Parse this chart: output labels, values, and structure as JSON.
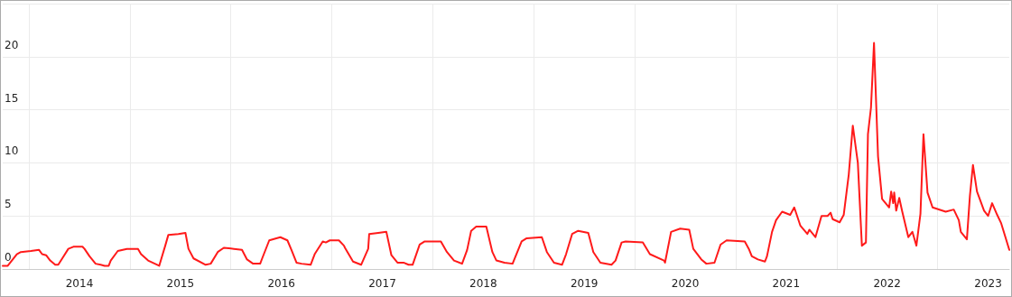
{
  "chart_data": {
    "type": "line",
    "xlim": [
      2013.24,
      2023.21
    ],
    "ylim": [
      0,
      25
    ],
    "yticks": [
      0,
      5,
      10,
      15,
      20
    ],
    "xticks": [
      {
        "value": 2013.5,
        "label": null
      },
      2014,
      {
        "value": 2014.5,
        "label": null
      },
      2015,
      {
        "value": 2015.5,
        "label": null
      },
      2016,
      {
        "value": 2016.5,
        "label": null
      },
      2017,
      {
        "value": 2017.5,
        "label": null
      },
      2018,
      {
        "value": 2018.5,
        "label": null
      },
      2019,
      {
        "value": 2019.5,
        "label": null
      },
      2020,
      {
        "value": 2020.5,
        "label": null
      },
      2021,
      {
        "value": 2021.5,
        "label": null
      },
      2022,
      {
        "value": 2022.5,
        "label": null
      },
      2023
    ],
    "grid": true,
    "marker": "none",
    "line_style": "solid",
    "series": [
      {
        "color": "#ff1a1a",
        "x": [
          2013.24,
          2013.29,
          2013.38,
          2013.42,
          2013.52,
          2013.6,
          2013.63,
          2013.67,
          2013.71,
          2013.76,
          2013.79,
          2013.83,
          2013.89,
          2013.94,
          2014.03,
          2014.05,
          2014.1,
          2014.16,
          2014.21,
          2014.25,
          2014.29,
          2014.31,
          2014.38,
          2014.47,
          2014.58,
          2014.61,
          2014.68,
          2014.79,
          2014.85,
          2014.88,
          2014.98,
          2015.05,
          2015.08,
          2015.13,
          2015.25,
          2015.3,
          2015.37,
          2015.43,
          2015.53,
          2015.61,
          2015.66,
          2015.72,
          2015.79,
          2015.81,
          2015.88,
          2015.99,
          2016.06,
          2016.1,
          2016.15,
          2016.2,
          2016.29,
          2016.33,
          2016.41,
          2016.44,
          2016.48,
          2016.57,
          2016.62,
          2016.63,
          2016.71,
          2016.79,
          2016.86,
          2016.87,
          2016.96,
          2017.04,
          2017.09,
          2017.15,
          2017.21,
          2017.26,
          2017.3,
          2017.37,
          2017.42,
          2017.58,
          2017.64,
          2017.71,
          2017.79,
          2017.84,
          2017.88,
          2017.93,
          2018.03,
          2018.09,
          2018.13,
          2018.21,
          2018.29,
          2018.38,
          2018.43,
          2018.58,
          2018.63,
          2018.7,
          2018.78,
          2018.82,
          2018.88,
          2018.94,
          2019.04,
          2019.09,
          2019.16,
          2019.27,
          2019.31,
          2019.37,
          2019.41,
          2019.58,
          2019.65,
          2019.79,
          2019.8,
          2019.86,
          2019.95,
          2020.04,
          2020.08,
          2020.16,
          2020.21,
          2020.29,
          2020.35,
          2020.41,
          2020.59,
          2020.63,
          2020.66,
          2020.72,
          2020.79,
          2020.81,
          2020.86,
          2020.9,
          2020.96,
          2021.04,
          2021.08,
          2021.14,
          2021.21,
          2021.23,
          2021.29,
          2021.35,
          2021.41,
          2021.44,
          2021.46,
          2021.53,
          2021.57,
          2021.62,
          2021.66,
          2021.71,
          2021.75,
          2021.79,
          2021.81,
          2021.84,
          2021.87,
          2021.91,
          2021.95,
          2022.02,
          2022.04,
          2022.06,
          2022.07,
          2022.09,
          2022.12,
          2022.15,
          2022.21,
          2022.25,
          2022.29,
          2022.33,
          2022.36,
          2022.4,
          2022.45,
          2022.58,
          2022.66,
          2022.71,
          2022.73,
          2022.79,
          2022.82,
          2022.85,
          2022.89,
          2022.96,
          2023.0,
          2023.04,
          2023.09,
          2023.13,
          2023.21
        ],
        "values": [
          0.3,
          0.3,
          1.4,
          1.6,
          1.7,
          1.8,
          1.4,
          1.3,
          0.8,
          0.4,
          0.4,
          1.0,
          1.9,
          2.1,
          2.1,
          1.9,
          1.2,
          0.5,
          0.4,
          0.3,
          0.3,
          0.8,
          1.7,
          1.9,
          1.9,
          1.4,
          0.8,
          0.3,
          2.2,
          3.2,
          3.3,
          3.4,
          1.9,
          1.0,
          0.4,
          0.5,
          1.6,
          2.0,
          1.9,
          1.8,
          0.9,
          0.5,
          0.5,
          1.0,
          2.7,
          3.0,
          2.7,
          1.8,
          0.6,
          0.5,
          0.4,
          1.4,
          2.6,
          2.5,
          2.7,
          2.7,
          2.2,
          2.0,
          0.7,
          0.4,
          1.9,
          3.3,
          3.4,
          3.5,
          1.3,
          0.6,
          0.6,
          0.4,
          0.4,
          2.3,
          2.6,
          2.6,
          1.6,
          0.8,
          0.5,
          1.8,
          3.6,
          4.0,
          4.0,
          1.6,
          0.8,
          0.6,
          0.5,
          2.6,
          2.9,
          3.0,
          1.6,
          0.6,
          0.4,
          1.4,
          3.3,
          3.6,
          3.4,
          1.6,
          0.6,
          0.4,
          0.8,
          2.5,
          2.6,
          2.5,
          1.4,
          0.8,
          0.6,
          3.5,
          3.8,
          3.7,
          1.9,
          0.9,
          0.5,
          0.6,
          2.3,
          2.7,
          2.6,
          1.9,
          1.2,
          0.9,
          0.7,
          1.2,
          3.5,
          4.6,
          5.4,
          5.1,
          5.8,
          4.1,
          3.3,
          3.7,
          3.0,
          5.0,
          5.0,
          5.3,
          4.7,
          4.4,
          5.1,
          8.9,
          13.5,
          10.0,
          2.2,
          2.5,
          12.7,
          15.2,
          21.3,
          10.6,
          6.6,
          5.8,
          7.3,
          6.2,
          7.2,
          5.5,
          6.7,
          5.4,
          3.0,
          3.5,
          2.2,
          5.2,
          12.7,
          7.2,
          5.8,
          5.4,
          5.6,
          4.6,
          3.5,
          2.8,
          6.9,
          9.8,
          7.3,
          5.5,
          5.0,
          6.2,
          5.1,
          4.3,
          1.8
        ]
      }
    ]
  }
}
